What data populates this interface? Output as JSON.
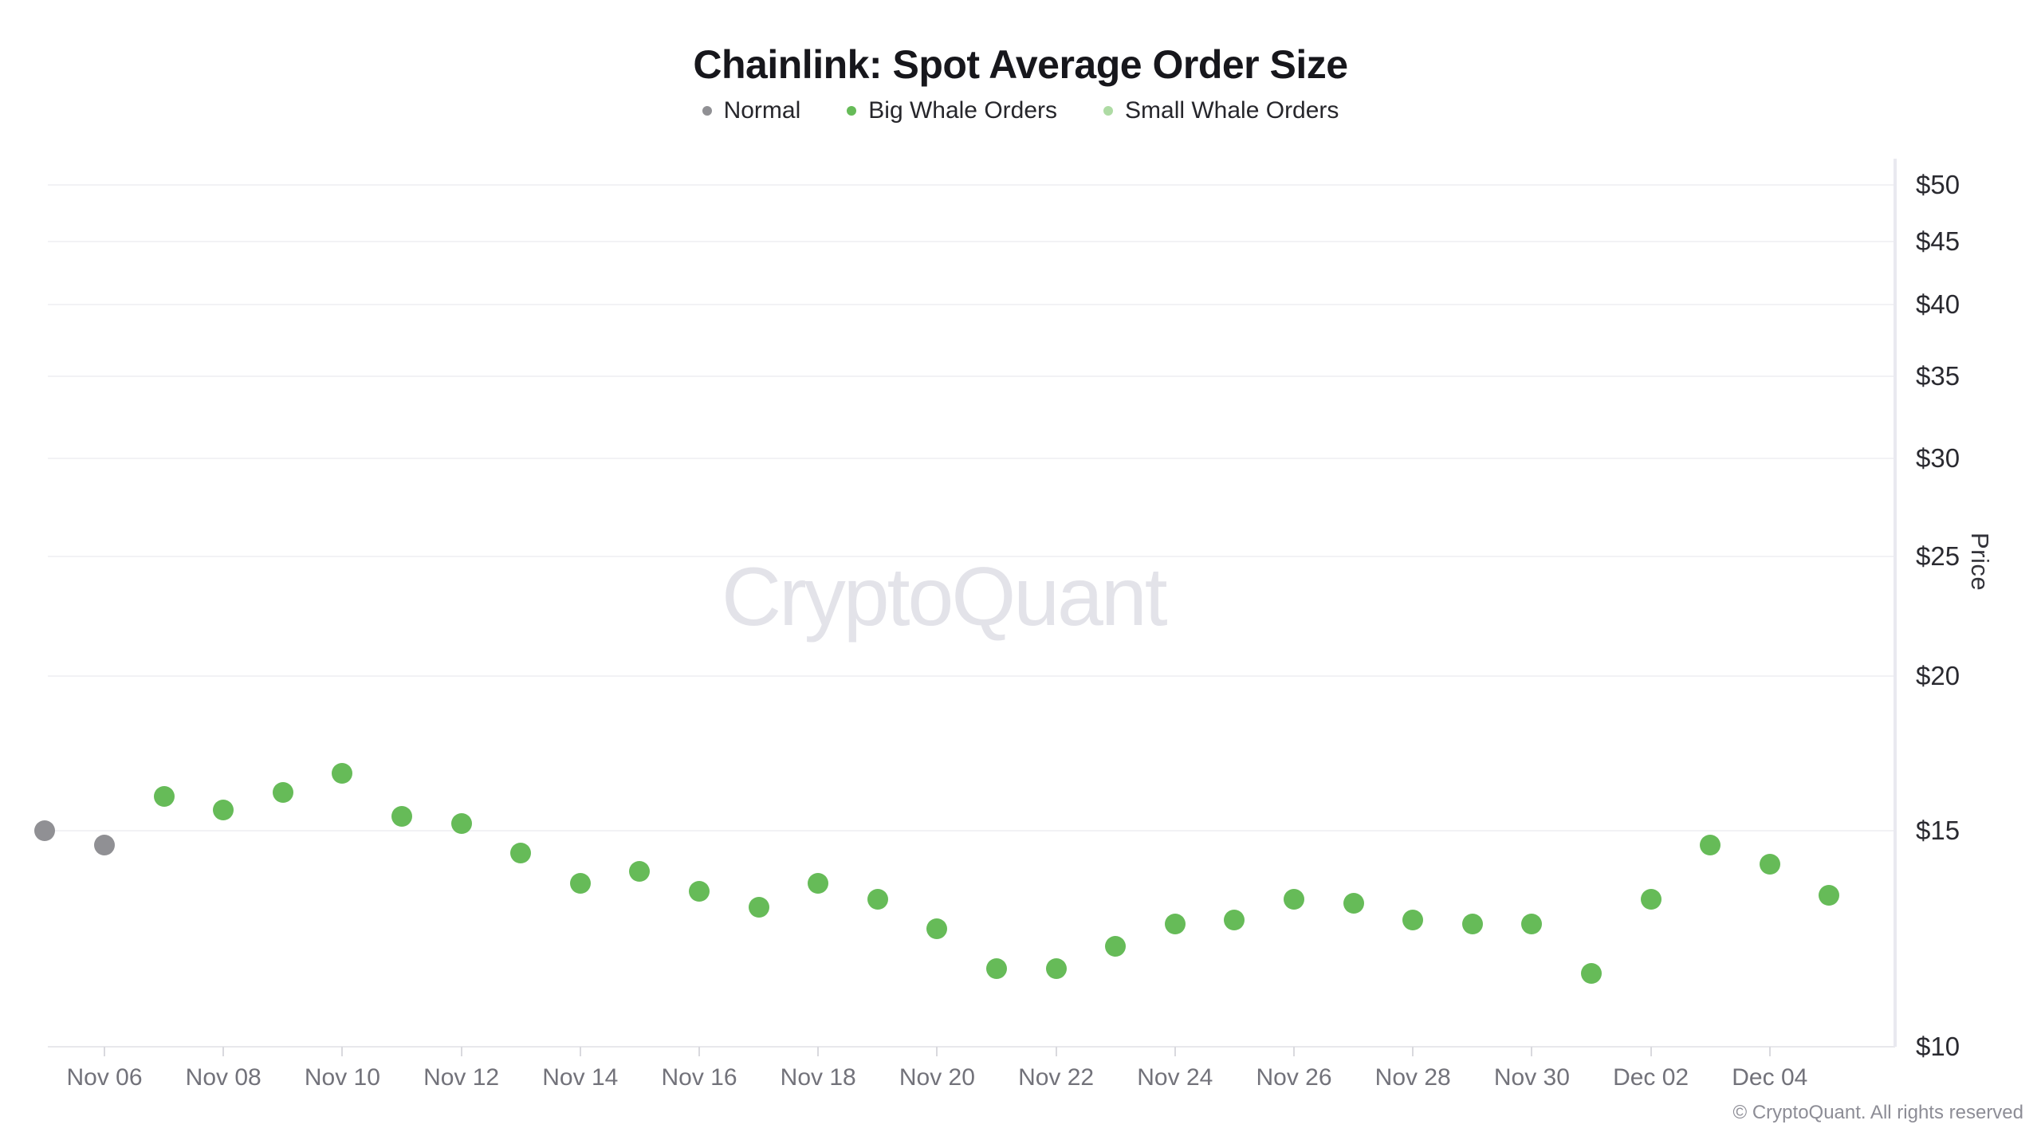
{
  "header": {
    "title": "Chainlink: Spot Average Order Size"
  },
  "legend": {
    "items": [
      {
        "label": "Normal",
        "color": "#909094"
      },
      {
        "label": "Big Whale Orders",
        "color": "#66bb58"
      },
      {
        "label": "Small Whale Orders",
        "color": "#aedba4"
      }
    ]
  },
  "watermark": {
    "text": "CryptoQuant"
  },
  "footer": {
    "text": "© CryptoQuant. All rights reserved"
  },
  "colors": {
    "normal": "#909094",
    "big_whale": "#66bb58",
    "small_whale": "#aedba4",
    "gridline": "#f2f2f5",
    "axis_line": "#e8e8ec",
    "x_label": "#72727a",
    "y_label": "#2a2a30"
  },
  "chart_data": {
    "type": "scatter",
    "title": "Chainlink: Spot Average Order Size",
    "xlabel": "",
    "ylabel": "Price",
    "y_scale": "log",
    "ylim": [
      10,
      52.5
    ],
    "y_axis_side": "right",
    "grid": true,
    "legend_position": "top",
    "y_ticks": [
      {
        "value": 50,
        "label": "$50"
      },
      {
        "value": 45,
        "label": "$45"
      },
      {
        "value": 40,
        "label": "$40"
      },
      {
        "value": 35,
        "label": "$35"
      },
      {
        "value": 30,
        "label": "$30"
      },
      {
        "value": 25,
        "label": "$25"
      },
      {
        "value": 20,
        "label": "$20"
      },
      {
        "value": 15,
        "label": "$15"
      },
      {
        "value": 10,
        "label": "$10"
      }
    ],
    "categories": [
      "Nov 05",
      "Nov 06",
      "Nov 07",
      "Nov 08",
      "Nov 09",
      "Nov 10",
      "Nov 11",
      "Nov 12",
      "Nov 13",
      "Nov 14",
      "Nov 15",
      "Nov 16",
      "Nov 17",
      "Nov 18",
      "Nov 19",
      "Nov 20",
      "Nov 21",
      "Nov 22",
      "Nov 23",
      "Nov 24",
      "Nov 25",
      "Nov 26",
      "Nov 27",
      "Nov 28",
      "Nov 29",
      "Nov 30",
      "Dec 01",
      "Dec 02",
      "Dec 03",
      "Dec 04",
      "Dec 05"
    ],
    "x_tick_labels": [
      "Nov 06",
      "Nov 08",
      "Nov 10",
      "Nov 12",
      "Nov 14",
      "Nov 16",
      "Nov 18",
      "Nov 20",
      "Nov 22",
      "Nov 24",
      "Nov 26",
      "Nov 28",
      "Nov 30",
      "Dec 02",
      "Dec 04"
    ],
    "x_tick_indices": [
      1,
      3,
      5,
      7,
      9,
      11,
      13,
      15,
      17,
      19,
      21,
      23,
      25,
      27,
      29
    ],
    "series": [
      {
        "name": "Normal",
        "color": "#909094",
        "points": [
          {
            "date": "Nov 05",
            "price": 15.0
          },
          {
            "date": "Nov 06",
            "price": 14.6
          }
        ]
      },
      {
        "name": "Big Whale Orders",
        "color": "#66bb58",
        "points": [
          {
            "date": "Nov 07",
            "price": 16.0
          },
          {
            "date": "Nov 08",
            "price": 15.6
          },
          {
            "date": "Nov 09",
            "price": 16.1
          },
          {
            "date": "Nov 10",
            "price": 16.7
          },
          {
            "date": "Nov 11",
            "price": 15.4
          },
          {
            "date": "Nov 12",
            "price": 15.2
          },
          {
            "date": "Nov 13",
            "price": 14.4
          },
          {
            "date": "Nov 14",
            "price": 13.6
          },
          {
            "date": "Nov 15",
            "price": 13.9
          },
          {
            "date": "Nov 16",
            "price": 13.4
          },
          {
            "date": "Nov 17",
            "price": 13.0
          },
          {
            "date": "Nov 18",
            "price": 13.6
          },
          {
            "date": "Nov 19",
            "price": 13.2
          },
          {
            "date": "Nov 20",
            "price": 12.5
          },
          {
            "date": "Nov 21",
            "price": 11.6
          },
          {
            "date": "Nov 22",
            "price": 11.6
          },
          {
            "date": "Nov 23",
            "price": 12.1
          },
          {
            "date": "Nov 24",
            "price": 12.6
          },
          {
            "date": "Nov 25",
            "price": 12.7
          },
          {
            "date": "Nov 26",
            "price": 13.2
          },
          {
            "date": "Nov 27",
            "price": 13.1
          },
          {
            "date": "Nov 28",
            "price": 12.7
          },
          {
            "date": "Nov 29",
            "price": 12.6
          },
          {
            "date": "Nov 30",
            "price": 12.6
          },
          {
            "date": "Dec 01",
            "price": 11.5
          },
          {
            "date": "Dec 02",
            "price": 13.2
          },
          {
            "date": "Dec 03",
            "price": 14.6
          },
          {
            "date": "Dec 04",
            "price": 14.1
          },
          {
            "date": "Dec 05",
            "price": 13.3
          }
        ]
      },
      {
        "name": "Small Whale Orders",
        "color": "#aedba4",
        "points": []
      }
    ]
  }
}
